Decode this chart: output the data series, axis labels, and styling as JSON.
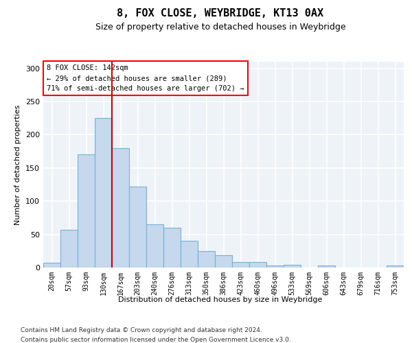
{
  "title": "8, FOX CLOSE, WEYBRIDGE, KT13 0AX",
  "subtitle": "Size of property relative to detached houses in Weybridge",
  "xlabel": "Distribution of detached houses by size in Weybridge",
  "ylabel": "Number of detached properties",
  "categories": [
    "20sqm",
    "57sqm",
    "93sqm",
    "130sqm",
    "167sqm",
    "203sqm",
    "240sqm",
    "276sqm",
    "313sqm",
    "350sqm",
    "386sqm",
    "423sqm",
    "460sqm",
    "496sqm",
    "533sqm",
    "569sqm",
    "606sqm",
    "643sqm",
    "679sqm",
    "716sqm",
    "753sqm"
  ],
  "bar_heights": [
    7,
    57,
    170,
    225,
    180,
    122,
    65,
    60,
    40,
    25,
    19,
    8,
    8,
    3,
    4,
    0,
    3,
    0,
    0,
    0,
    3
  ],
  "red_line_x": 3.5,
  "annotation_text": "8 FOX CLOSE: 142sqm\n← 29% of detached houses are smaller (289)\n71% of semi-detached houses are larger (702) →",
  "ylim": [
    0,
    310
  ],
  "yticks": [
    0,
    50,
    100,
    150,
    200,
    250,
    300
  ],
  "bar_color": "#c5d8ed",
  "bar_edgecolor": "#7aafd4",
  "red_line_color": "#cc0000",
  "background_color": "#eef3f8",
  "grid_color": "#ffffff",
  "footer_line1": "Contains HM Land Registry data © Crown copyright and database right 2024.",
  "footer_line2": "Contains public sector information licensed under the Open Government Licence v3.0."
}
